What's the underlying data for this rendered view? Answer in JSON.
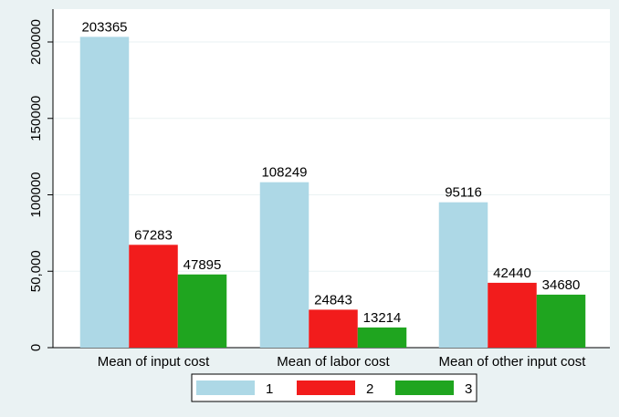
{
  "chart_data": {
    "type": "bar",
    "categories": [
      "Mean of input cost",
      "Mean of labor cost",
      "Mean of other input cost"
    ],
    "series": [
      {
        "name": "1",
        "color": "#add8e6",
        "values": [
          203365,
          108249,
          95116
        ]
      },
      {
        "name": "2",
        "color": "#f21c1c",
        "values": [
          67283,
          24843,
          42440
        ]
      },
      {
        "name": "3",
        "color": "#1fa51f",
        "values": [
          47895,
          13214,
          34680
        ]
      }
    ],
    "ylim": [
      0,
      221500
    ],
    "yticks": [
      0,
      {
        "value": 50000,
        "label": "50,000"
      },
      100000,
      150000,
      200000
    ],
    "grid": true,
    "legend": "bottom"
  }
}
